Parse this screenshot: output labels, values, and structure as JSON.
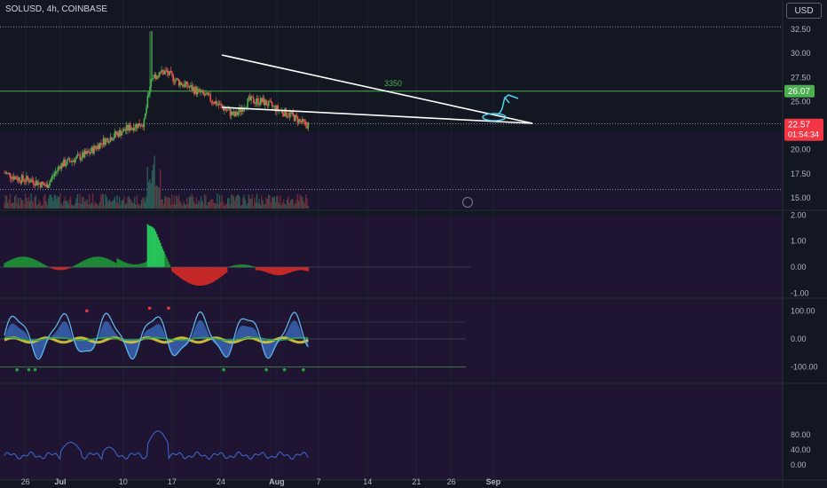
{
  "header": {
    "symbol_label": "SOLUSD, 4h, COINBASE",
    "currency_button": "USD"
  },
  "colors": {
    "background": "#131722",
    "up": "#26a69a",
    "up_alt": "#4caf50",
    "down": "#ef5350",
    "wedge": "#ffffff",
    "annotation": "#4fd1e8",
    "resistance": "#4caf50",
    "rsi": "#3f6ad8"
  },
  "chart_data": [
    {
      "type": "candlestick",
      "title": "SOLUSD, 4h, COINBASE",
      "y_axis_ticks": [
        "32.50",
        "30.00",
        "27.50",
        "25.00",
        "22.50",
        "20.00",
        "17.50",
        "15.00"
      ],
      "ylim": [
        14.5,
        33.5
      ],
      "x_axis_ticks": [
        "26",
        "Jul",
        "10",
        "17",
        "24",
        "Aug",
        "7",
        "14",
        "21",
        "26",
        "Sep"
      ],
      "close_path": [
        [
          "Jun 23",
          17.6
        ],
        [
          "Jun 25",
          17.0
        ],
        [
          "Jun 27",
          16.8
        ],
        [
          "Jun 29",
          16.2
        ],
        [
          "Jul 1",
          18.4
        ],
        [
          "Jul 3",
          19.0
        ],
        [
          "Jul 5",
          19.6
        ],
        [
          "Jul 7",
          20.8
        ],
        [
          "Jul 9",
          21.6
        ],
        [
          "Jul 11",
          22.3
        ],
        [
          "Jul 13",
          22.8
        ],
        [
          "Jul 14",
          27.5
        ],
        [
          "Jul 16",
          28.1
        ],
        [
          "Jul 18",
          27.0
        ],
        [
          "Jul 20",
          26.3
        ],
        [
          "Jul 22",
          25.5
        ],
        [
          "Jul 24",
          24.5
        ],
        [
          "Jul 26",
          23.5
        ],
        [
          "Jul 28",
          25.1
        ],
        [
          "Jul 30",
          25.0
        ],
        [
          "Aug 1",
          24.2
        ],
        [
          "Aug 3",
          23.6
        ],
        [
          "Aug 5",
          22.6
        ]
      ],
      "current_price": "22.57",
      "countdown": "01:54:34",
      "resistance_level": "26.07",
      "resistance_label": "3350",
      "dotted_levels": [
        32.75,
        22.7,
        15.85
      ]
    },
    {
      "type": "histogram",
      "y_axis_ticks": [
        "2.00",
        "1.00",
        "0.00",
        "-1.00"
      ],
      "ylim": [
        -1.2,
        2.2
      ]
    },
    {
      "type": "line",
      "y_axis_ticks": [
        "100.00",
        "0.00",
        "-100.00"
      ],
      "ylim": [
        -150,
        130
      ]
    },
    {
      "type": "line",
      "y_axis_ticks": [
        "80.00",
        "40.00",
        "0.00"
      ],
      "ylim": [
        -5,
        100
      ]
    }
  ]
}
